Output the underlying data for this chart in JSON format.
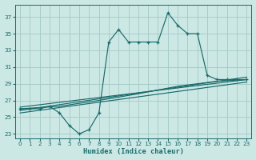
{
  "xlabel": "Humidex (Indice chaleur)",
  "xlim": [
    -0.5,
    23.5
  ],
  "ylim": [
    22.5,
    38.5
  ],
  "xticks": [
    0,
    1,
    2,
    3,
    4,
    5,
    6,
    7,
    8,
    9,
    10,
    11,
    12,
    13,
    14,
    15,
    16,
    17,
    18,
    19,
    20,
    21,
    22,
    23
  ],
  "yticks": [
    23,
    25,
    27,
    29,
    31,
    33,
    35,
    37
  ],
  "bg_color": "#cce8e5",
  "grid_color": "#a8cdc9",
  "line_color": "#1a6b6b",
  "line1_x": [
    0,
    1,
    2,
    3,
    4,
    5,
    6,
    7,
    8,
    9,
    10,
    11,
    12,
    13,
    14,
    15,
    16,
    17,
    18,
    19,
    20,
    21,
    22,
    23
  ],
  "line1_y": [
    26,
    26,
    26,
    26.3,
    25.5,
    24,
    23,
    23.5,
    25.5,
    34,
    35.5,
    34,
    34,
    34,
    34,
    37.5,
    36,
    35,
    35,
    30,
    29.5,
    29.5,
    29.5,
    29.5
  ],
  "line2_x": [
    0,
    23
  ],
  "line2_y": [
    26.2,
    29.5
  ],
  "line3_x": [
    0,
    23
  ],
  "line3_y": [
    25.8,
    29.8
  ],
  "line4_x": [
    0,
    23
  ],
  "line4_y": [
    25.5,
    29.2
  ],
  "line5_x": [
    0,
    4,
    8,
    12,
    16,
    20,
    23
  ],
  "line5_y": [
    26.0,
    26.3,
    27.0,
    27.8,
    28.7,
    29.3,
    29.5
  ]
}
